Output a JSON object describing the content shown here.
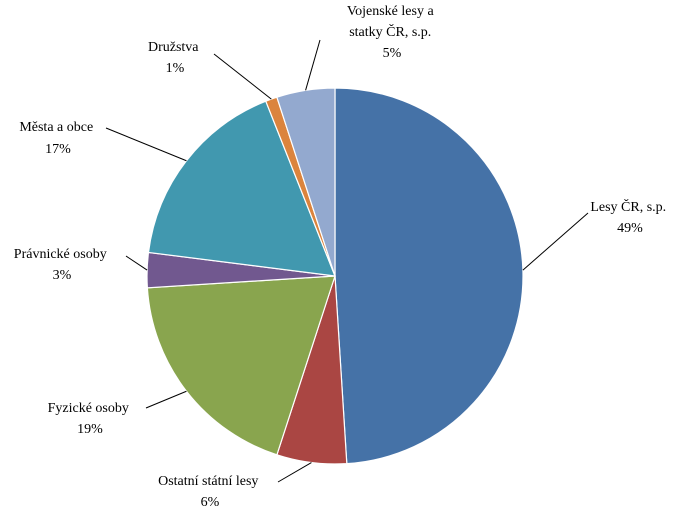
{
  "chart_data": {
    "type": "pie",
    "title": "",
    "labels": [
      "Lesy ČR, s.p.",
      "Ostatní státní lesy",
      "Fyzické osoby",
      "Právnické osoby",
      "Města a obce",
      "Družstva",
      "Vojenské lesy a statky ČR, s.p."
    ],
    "values": [
      49,
      6,
      19,
      3,
      17,
      1,
      5
    ],
    "value_labels": [
      "49%",
      "6%",
      "19%",
      "3%",
      "17%",
      "1%",
      "5%"
    ],
    "colors": [
      "#4572a7",
      "#aa4643",
      "#89a54e",
      "#71588f",
      "#4198af",
      "#db843d",
      "#93a9cf"
    ],
    "start_angle_deg": 0,
    "direction": "clockwise",
    "legend": "none",
    "label_position": "outside-with-leader-lines"
  },
  "label_lines": {
    "lesy_cr": [
      "Lesy ČR, s.p.",
      "49%"
    ],
    "ostatni": [
      "Ostatní státní lesy",
      "6%"
    ],
    "fyzicke": [
      "Fyzické osoby",
      "19%"
    ],
    "pravnicke": [
      "Právnické osoby",
      "3%"
    ],
    "mesta": [
      "Města a obce",
      "17%"
    ],
    "druzstva": [
      "Družstva",
      "1%"
    ],
    "vojenske": [
      "Vojenské lesy a",
      "statky ČR, s.p.",
      "5%"
    ]
  }
}
